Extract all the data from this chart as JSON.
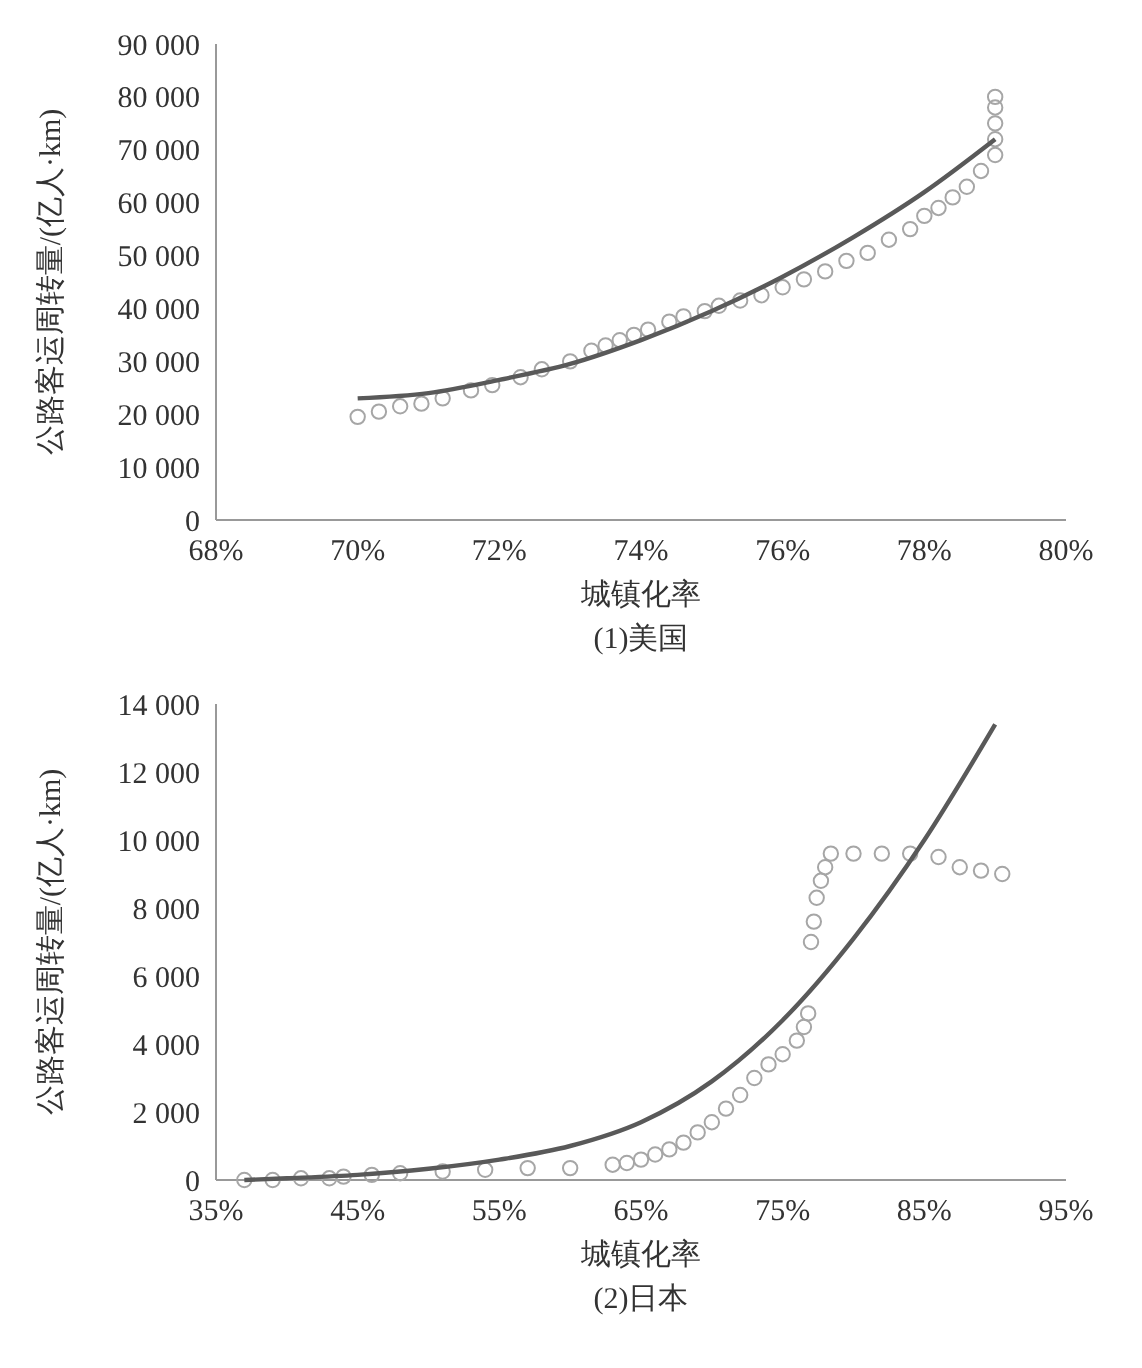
{
  "chart_data": [
    {
      "type": "scatter",
      "title": "(1)美国",
      "xlabel": "城镇化率",
      "ylabel": "公路客运周转量/(亿人·km)",
      "xlim": [
        68,
        80
      ],
      "xticks": [
        {
          "value": 68,
          "label": "68%"
        },
        {
          "value": 70,
          "label": "70%"
        },
        {
          "value": 72,
          "label": "72%"
        },
        {
          "value": 74,
          "label": "74%"
        },
        {
          "value": 76,
          "label": "76%"
        },
        {
          "value": 78,
          "label": "78%"
        },
        {
          "value": 80,
          "label": "80%"
        }
      ],
      "ylim": [
        0,
        90000
      ],
      "yticks": [
        0,
        {
          "value": 10000,
          "label": "10 000"
        },
        {
          "value": 20000,
          "label": "20 000"
        },
        {
          "value": 30000,
          "label": "30 000"
        },
        {
          "value": 40000,
          "label": "40 000"
        },
        {
          "value": 50000,
          "label": "50 000"
        },
        {
          "value": 60000,
          "label": "60 000"
        },
        {
          "value": 70000,
          "label": "70 000"
        },
        {
          "value": 80000,
          "label": "80 000"
        },
        {
          "value": 90000,
          "label": "90 000"
        }
      ],
      "grid": false,
      "series": [
        {
          "marker": "circle",
          "color": "#a6a6a6",
          "x": [
            70.0,
            70.3,
            70.6,
            70.9,
            71.2,
            71.6,
            71.9,
            72.3,
            72.6,
            73.0,
            73.3,
            73.5,
            73.7,
            73.9,
            74.1,
            74.4,
            74.6,
            74.9,
            75.1,
            75.4,
            75.7,
            76.0,
            76.3,
            76.6,
            76.9,
            77.2,
            77.5,
            77.8,
            78.0,
            78.2,
            78.4,
            78.6,
            78.8,
            79.0,
            79.0,
            79.0,
            79.0,
            79.0
          ],
          "values": [
            19500,
            20500,
            21500,
            22000,
            23000,
            24500,
            25500,
            27000,
            28500,
            30000,
            32000,
            33000,
            34000,
            35000,
            36000,
            37500,
            38500,
            39500,
            40500,
            41500,
            42500,
            44000,
            45500,
            47000,
            49000,
            50500,
            53000,
            55000,
            57500,
            59000,
            61000,
            63000,
            66000,
            69000,
            72000,
            75000,
            78000,
            80000
          ]
        },
        {
          "type": "line",
          "line_style": "solid",
          "color": "#595959",
          "x": [
            70,
            71,
            72,
            73,
            74,
            75,
            76,
            77,
            78,
            79
          ],
          "values": [
            23000,
            24000,
            26500,
            29500,
            34000,
            39500,
            46000,
            53500,
            62000,
            72000
          ]
        }
      ]
    },
    {
      "type": "scatter",
      "title": "(2)日本",
      "xlabel": "城镇化率",
      "ylabel": "公路客运周转量/(亿人·km)",
      "xlim": [
        35,
        95
      ],
      "xticks": [
        {
          "value": 35,
          "label": "35%"
        },
        {
          "value": 45,
          "label": "45%"
        },
        {
          "value": 55,
          "label": "55%"
        },
        {
          "value": 65,
          "label": "65%"
        },
        {
          "value": 75,
          "label": "75%"
        },
        {
          "value": 85,
          "label": "85%"
        },
        {
          "value": 95,
          "label": "95%"
        }
      ],
      "ylim": [
        0,
        14000
      ],
      "yticks": [
        0,
        {
          "value": 2000,
          "label": "2 000"
        },
        {
          "value": 4000,
          "label": "4 000"
        },
        {
          "value": 6000,
          "label": "6 000"
        },
        {
          "value": 8000,
          "label": "8 000"
        },
        {
          "value": 10000,
          "label": "10 000"
        },
        {
          "value": 12000,
          "label": "12 000"
        },
        {
          "value": 14000,
          "label": "14 000"
        }
      ],
      "grid": false,
      "series": [
        {
          "marker": "circle",
          "color": "#a6a6a6",
          "x": [
            37,
            39,
            41,
            43,
            44,
            46,
            48,
            51,
            54,
            57,
            60,
            63,
            64,
            65,
            66,
            67,
            68,
            69,
            70,
            71,
            72,
            73,
            74,
            75,
            76,
            76.5,
            76.8,
            77,
            77.2,
            77.4,
            77.7,
            78,
            78.4,
            80,
            82,
            84,
            86,
            87.5,
            89,
            90.5
          ],
          "values": [
            0,
            0,
            50,
            50,
            100,
            150,
            200,
            250,
            300,
            350,
            350,
            450,
            500,
            600,
            750,
            900,
            1100,
            1400,
            1700,
            2100,
            2500,
            3000,
            3400,
            3700,
            4100,
            4500,
            4900,
            7000,
            7600,
            8300,
            8800,
            9200,
            9600,
            9600,
            9600,
            9600,
            9500,
            9200,
            9100,
            9000
          ]
        },
        {
          "type": "line",
          "line_style": "solid",
          "color": "#595959",
          "x": [
            37,
            40,
            45,
            50,
            55,
            60,
            65,
            70,
            75,
            80,
            85,
            90
          ],
          "values": [
            0,
            50,
            150,
            330,
            600,
            1000,
            1700,
            2900,
            4700,
            7100,
            10000,
            13400
          ]
        }
      ]
    }
  ]
}
